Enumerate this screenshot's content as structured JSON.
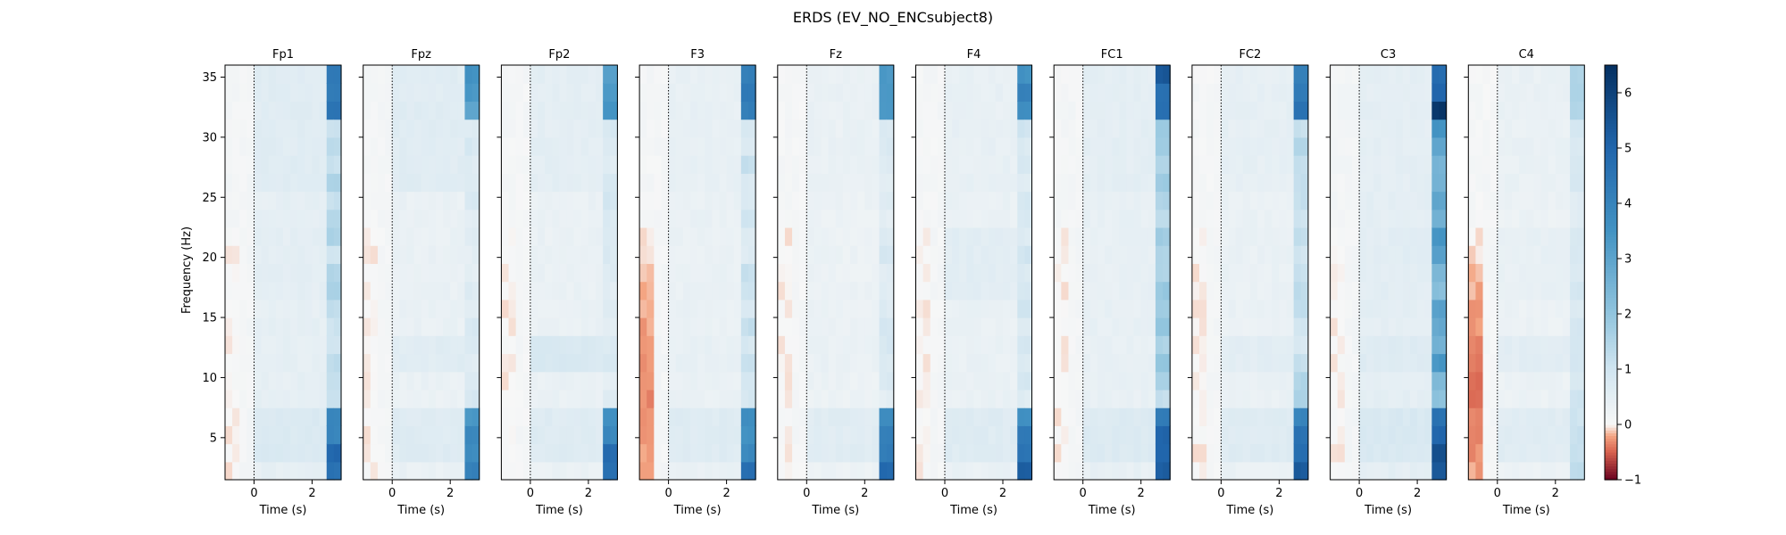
{
  "chart_data": {
    "type": "heatmap",
    "title": "ERDS (EV_NO_ENCsubject8)",
    "xlabel": "Time (s)",
    "ylabel": "Frequency (Hz)",
    "xlim": [
      -1,
      3
    ],
    "ylim": [
      1.5,
      36
    ],
    "x_ticks": [
      0,
      2
    ],
    "y_ticks": [
      5,
      10,
      15,
      20,
      25,
      30,
      35
    ],
    "event_line_x": 0,
    "colorbar": {
      "cmap": "RdBu",
      "vmin": -1,
      "vmax": 6.5,
      "ticks": [
        -1,
        0,
        1,
        2,
        3,
        4,
        5,
        6
      ],
      "colors": {
        "neg": "#67001f",
        "zero": "#f7f7f7",
        "pos": "#053061"
      }
    },
    "panels": [
      {
        "channel": "Fp1",
        "late_high_band": 4.8,
        "late_low_band": 5.6,
        "late_mid": 1.6,
        "pre_stim_dip": 0.0,
        "baseline": 0.45,
        "beta_band": 0.5,
        "alpha_band": 0.45,
        "high_gamma": 0.6
      },
      {
        "channel": "Fpz",
        "late_high_band": 3.6,
        "late_low_band": 4.8,
        "late_mid": 0.9,
        "pre_stim_dip": 0.0,
        "baseline": 0.35,
        "beta_band": 0.3,
        "alpha_band": 0.6,
        "high_gamma": 0.6
      },
      {
        "channel": "Fp2",
        "late_high_band": 3.8,
        "late_low_band": 5.4,
        "late_mid": 1.0,
        "pre_stim_dip": 0.0,
        "baseline": 0.35,
        "beta_band": 0.35,
        "alpha_band": 0.8,
        "high_gamma": 0.5
      },
      {
        "channel": "F3",
        "late_high_band": 4.4,
        "late_low_band": 5.0,
        "late_mid": 1.2,
        "pre_stim_dip": -0.35,
        "baseline": 0.35,
        "beta_band": 0.35,
        "alpha_band": 0.4,
        "high_gamma": 0.4
      },
      {
        "channel": "Fz",
        "late_high_band": 4.0,
        "late_low_band": 5.4,
        "late_mid": 0.9,
        "pre_stim_dip": 0.0,
        "baseline": 0.3,
        "beta_band": 0.3,
        "alpha_band": 0.35,
        "high_gamma": 0.35
      },
      {
        "channel": "F4",
        "late_high_band": 4.2,
        "late_low_band": 5.6,
        "late_mid": 1.1,
        "pre_stim_dip": 0.0,
        "baseline": 0.35,
        "beta_band": 0.55,
        "alpha_band": 0.35,
        "high_gamma": 0.4
      },
      {
        "channel": "FC1",
        "late_high_band": 6.2,
        "late_low_band": 6.2,
        "late_mid": 2.2,
        "pre_stim_dip": 0.0,
        "baseline": 0.4,
        "beta_band": 0.4,
        "alpha_band": 0.4,
        "high_gamma": 0.5
      },
      {
        "channel": "FC2",
        "late_high_band": 4.8,
        "late_low_band": 5.8,
        "late_mid": 1.6,
        "pre_stim_dip": 0.0,
        "baseline": 0.35,
        "beta_band": 0.35,
        "alpha_band": 0.55,
        "high_gamma": 0.45
      },
      {
        "channel": "C3",
        "late_high_band": 6.4,
        "late_low_band": 6.5,
        "late_mid": 3.6,
        "pre_stim_dip": 0.0,
        "baseline": 0.5,
        "beta_band": 0.55,
        "alpha_band": 0.65,
        "high_gamma": 0.5
      },
      {
        "channel": "C4",
        "late_high_band": 1.6,
        "late_low_band": 1.4,
        "late_mid": 1.0,
        "pre_stim_dip": -0.45,
        "baseline": 0.3,
        "beta_band": 0.4,
        "alpha_band": 0.55,
        "high_gamma": 0.35
      }
    ]
  }
}
